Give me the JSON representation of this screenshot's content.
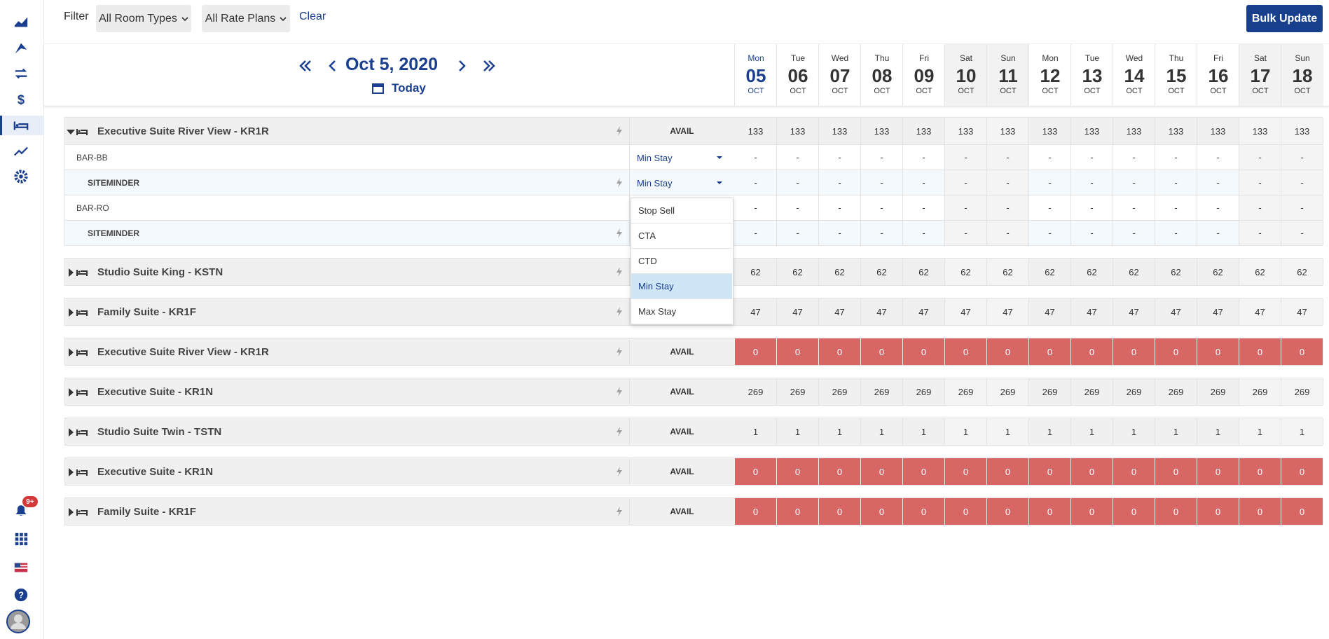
{
  "sidebar": {
    "badge": "9+"
  },
  "filter": {
    "label": "Filter",
    "room_types": "All Room Types",
    "rate_plans": "All Rate Plans",
    "clear": "Clear",
    "bulk_update": "Bulk Update"
  },
  "nav": {
    "date": "Oct 5, 2020",
    "today": "Today"
  },
  "days": [
    {
      "dow": "Mon",
      "day": "05",
      "month": "OCT"
    },
    {
      "dow": "Tue",
      "day": "06",
      "month": "OCT"
    },
    {
      "dow": "Wed",
      "day": "07",
      "month": "OCT"
    },
    {
      "dow": "Thu",
      "day": "08",
      "month": "OCT"
    },
    {
      "dow": "Fri",
      "day": "09",
      "month": "OCT"
    },
    {
      "dow": "Sat",
      "day": "10",
      "month": "OCT"
    },
    {
      "dow": "Sun",
      "day": "11",
      "month": "OCT"
    },
    {
      "dow": "Mon",
      "day": "12",
      "month": "OCT"
    },
    {
      "dow": "Tue",
      "day": "13",
      "month": "OCT"
    },
    {
      "dow": "Wed",
      "day": "14",
      "month": "OCT"
    },
    {
      "dow": "Thu",
      "day": "15",
      "month": "OCT"
    },
    {
      "dow": "Fri",
      "day": "16",
      "month": "OCT"
    },
    {
      "dow": "Sat",
      "day": "17",
      "month": "OCT"
    },
    {
      "dow": "Sun",
      "day": "18",
      "month": "OCT"
    }
  ],
  "rooms": [
    {
      "name": "Executive Suite River View - KR1R",
      "label": "AVAIL",
      "values": [
        133,
        133,
        133,
        133,
        133,
        133,
        133,
        133,
        133,
        133,
        133,
        133,
        133,
        133
      ],
      "rates": [
        {
          "name": "BAR-BB",
          "select": "Min Stay",
          "values": [
            "-",
            "-",
            "-",
            "-",
            "-",
            "-",
            "-",
            "-",
            "-",
            "-",
            "-",
            "-",
            "-",
            "-"
          ],
          "channels": [
            {
              "name": "SITEMINDER",
              "select": "Min Stay",
              "values": [
                "-",
                "-",
                "-",
                "-",
                "-",
                "-",
                "-",
                "-",
                "-",
                "-",
                "-",
                "-",
                "-",
                "-"
              ]
            }
          ]
        },
        {
          "name": "BAR-RO",
          "values": [
            "-",
            "-",
            "-",
            "-",
            "-",
            "-",
            "-",
            "-",
            "-",
            "-",
            "-",
            "-",
            "-",
            "-"
          ],
          "channels": [
            {
              "name": "SITEMINDER",
              "values": [
                "-",
                "-",
                "-",
                "-",
                "-",
                "-",
                "-",
                "-",
                "-",
                "-",
                "-",
                "-",
                "-",
                "-"
              ]
            }
          ]
        }
      ]
    },
    {
      "name": "Studio Suite King - KSTN",
      "values": [
        62,
        62,
        62,
        62,
        62,
        62,
        62,
        62,
        62,
        62,
        62,
        62,
        62,
        62
      ]
    },
    {
      "name": "Family Suite - KR1F",
      "values": [
        47,
        47,
        47,
        47,
        47,
        47,
        47,
        47,
        47,
        47,
        47,
        47,
        47,
        47
      ]
    },
    {
      "name": "Executive Suite River View - KR1R",
      "label": "AVAIL",
      "values": [
        0,
        0,
        0,
        0,
        0,
        0,
        0,
        0,
        0,
        0,
        0,
        0,
        0,
        0
      ]
    },
    {
      "name": "Executive Suite - KR1N",
      "label": "AVAIL",
      "values": [
        269,
        269,
        269,
        269,
        269,
        269,
        269,
        269,
        269,
        269,
        269,
        269,
        269,
        269
      ]
    },
    {
      "name": "Studio Suite Twin - TSTN",
      "label": "AVAIL",
      "values": [
        1,
        1,
        1,
        1,
        1,
        1,
        1,
        1,
        1,
        1,
        1,
        1,
        1,
        1
      ]
    },
    {
      "name": "Executive Suite - KR1N",
      "label": "AVAIL",
      "values": [
        0,
        0,
        0,
        0,
        0,
        0,
        0,
        0,
        0,
        0,
        0,
        0,
        0,
        0
      ]
    },
    {
      "name": "Family Suite - KR1F",
      "label": "AVAIL",
      "values": [
        0,
        0,
        0,
        0,
        0,
        0,
        0,
        0,
        0,
        0,
        0,
        0,
        0,
        0
      ]
    }
  ],
  "dropdown": {
    "options": [
      "Stop Sell",
      "CTA",
      "CTD",
      "Min Stay",
      "Max Stay"
    ],
    "selected": 3
  }
}
